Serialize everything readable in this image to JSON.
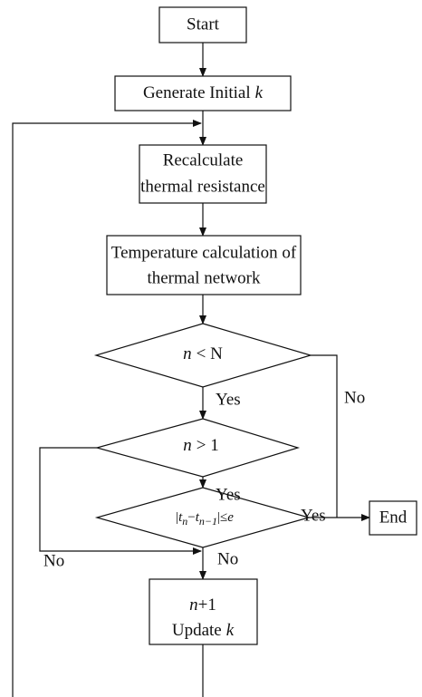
{
  "nodes": [
    {
      "text": "Start"
    },
    {
      "text": "Generate Initial",
      "var": "k"
    },
    {
      "lines": [
        "Recalculate",
        "thermal resistance"
      ]
    },
    {
      "lines": [
        "Temperature calculation of",
        "thermal network"
      ]
    },
    {
      "var": "n",
      "text": "< N"
    },
    {
      "var": "n",
      "text": "> 1"
    },
    {
      "parts": [
        "|",
        "t",
        "n",
        "−",
        "t",
        "n−1",
        "|≤",
        "e"
      ]
    },
    {
      "var": "n",
      "text": "+1",
      "line2": "Update",
      "var2": "k"
    },
    {
      "text": "End"
    }
  ],
  "edges": [
    {
      "label": "Yes"
    },
    {
      "label": "No"
    },
    {
      "label": "Yes"
    },
    {
      "label": "No"
    },
    {
      "label": "Yes"
    },
    {
      "label": "No"
    }
  ]
}
